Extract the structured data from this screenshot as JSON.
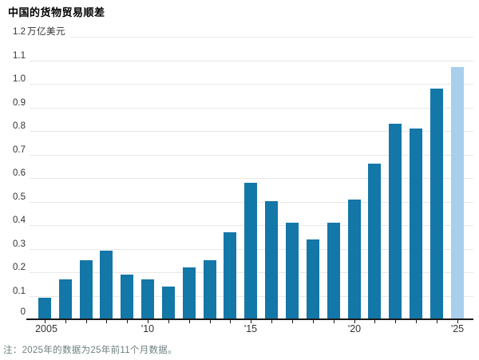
{
  "title": "中国的货物贸易顺差",
  "y_axis": {
    "top_value": "1.2",
    "unit": "万亿美元",
    "tick_labels": [
      "1.1",
      "1.0",
      "0.9",
      "0.8",
      "0.7",
      "0.6",
      "0.5",
      "0.4",
      "0.3",
      "0.2",
      "0.1",
      "0"
    ]
  },
  "footnote": "注：2025年的数据为25年前11个月数据。",
  "colors": {
    "bar": "#1377a8",
    "bar_highlight": "#a8cfeb",
    "gridline": "#e8e8e6",
    "axis": "#1a1a1a",
    "label": "#333333",
    "footnote": "#6f7f7f"
  },
  "chart_data": {
    "type": "bar",
    "title": "中国的货物贸易顺差",
    "ylabel": "万亿美元",
    "ylim": [
      0,
      1.2
    ],
    "y_tick_step": 0.1,
    "grid": true,
    "legend": "none",
    "categories": [
      2005,
      2006,
      2007,
      2008,
      2009,
      2010,
      2011,
      2012,
      2013,
      2014,
      2015,
      2016,
      2017,
      2018,
      2019,
      2020,
      2021,
      2022,
      2023,
      2024,
      2025
    ],
    "values": [
      0.09,
      0.17,
      0.25,
      0.29,
      0.19,
      0.17,
      0.14,
      0.22,
      0.25,
      0.37,
      0.58,
      0.5,
      0.41,
      0.34,
      0.41,
      0.51,
      0.66,
      0.83,
      0.81,
      0.98,
      1.07
    ],
    "highlight_index": 20,
    "highlight_note": "2025年柱为浅蓝色（前11个月数据）",
    "x_tick_labels": [
      {
        "index": 0,
        "label": "2005"
      },
      {
        "index": 5,
        "label": "'10"
      },
      {
        "index": 10,
        "label": "'15"
      },
      {
        "index": 15,
        "label": "'20"
      },
      {
        "index": 20,
        "label": "'25"
      }
    ],
    "note": "注：2025年的数据为25年前11个月数据。"
  }
}
